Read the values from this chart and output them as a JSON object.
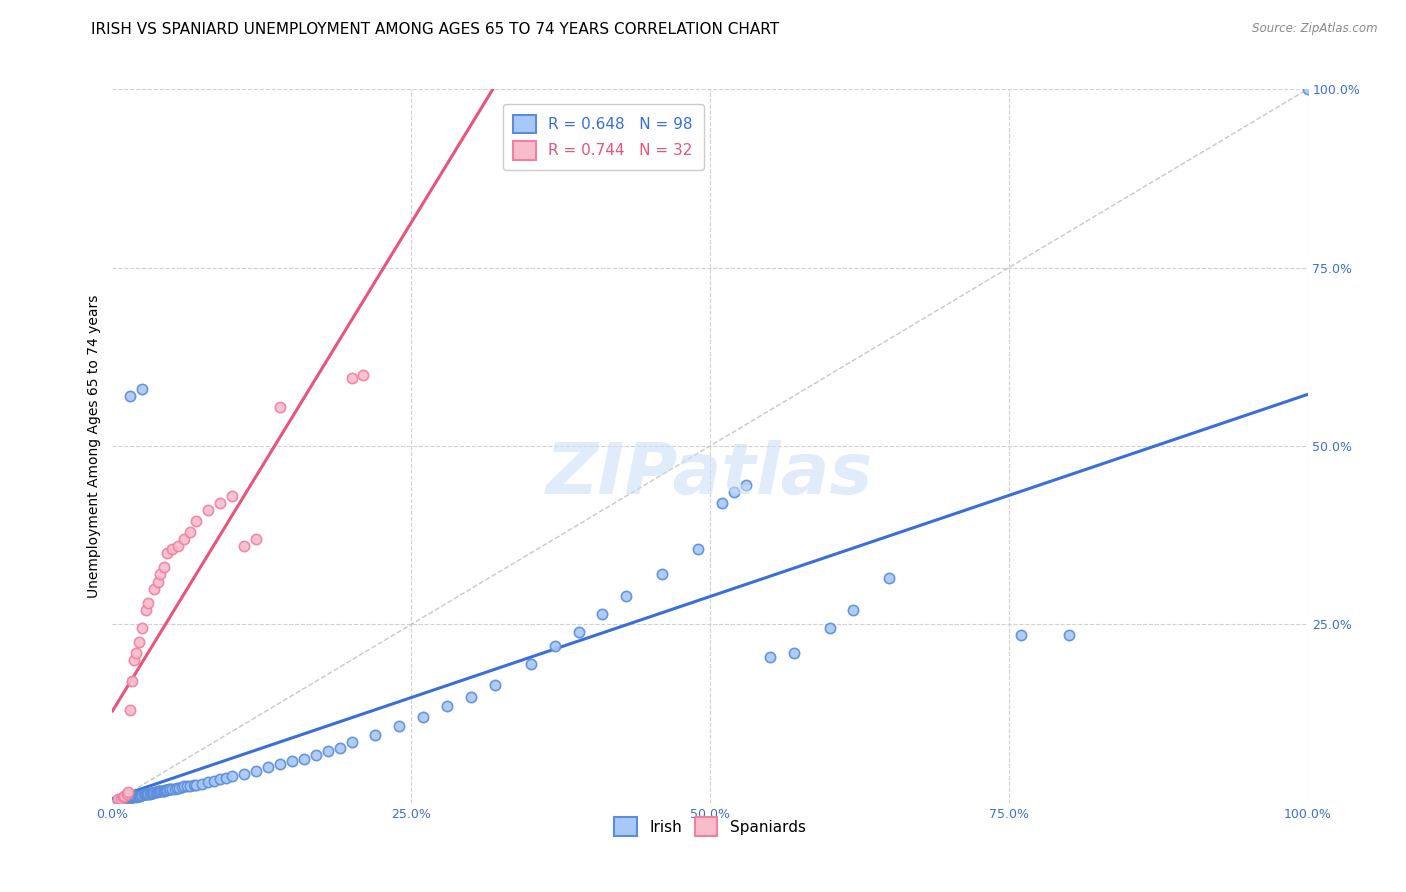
{
  "title": "IRISH VS SPANIARD UNEMPLOYMENT AMONG AGES 65 TO 74 YEARS CORRELATION CHART",
  "source": "Source: ZipAtlas.com",
  "ylabel": "Unemployment Among Ages 65 to 74 years",
  "xlim": [
    0.0,
    1.0
  ],
  "ylim": [
    0.0,
    1.0
  ],
  "xtick_labels": [
    "0.0%",
    "25.0%",
    "50.0%",
    "75.0%",
    "100.0%"
  ],
  "xtick_vals": [
    0.0,
    0.25,
    0.5,
    0.75,
    1.0
  ],
  "ytick_labels_right": [
    "100.0%",
    "75.0%",
    "50.0%",
    "25.0%"
  ],
  "ytick_vals_right": [
    1.0,
    0.75,
    0.5,
    0.25
  ],
  "irish_color": "#a8c8fa",
  "irish_edge_color": "#5b8dd9",
  "spaniard_color": "#f9bccb",
  "spaniard_edge_color": "#f080a0",
  "irish_line_color": "#3a6fd8",
  "spaniard_line_color": "#e8547a",
  "diagonal_color": "#c8c8c8",
  "irish_R": 0.648,
  "irish_N": 98,
  "spaniard_R": 0.744,
  "spaniard_N": 32,
  "legend_irish_label": "R = 0.648   N = 98",
  "legend_spaniard_label": "R = 0.744   N = 32",
  "watermark": "ZIPatlas",
  "background_color": "#ffffff",
  "title_fontsize": 11,
  "axis_label_fontsize": 10,
  "tick_fontsize": 9,
  "marker_size": 55,
  "marker_linewidth": 1.2,
  "irish_x": [
    0.005,
    0.007,
    0.008,
    0.009,
    0.01,
    0.01,
    0.011,
    0.012,
    0.013,
    0.014,
    0.015,
    0.015,
    0.016,
    0.017,
    0.018,
    0.019,
    0.02,
    0.02,
    0.021,
    0.022,
    0.023,
    0.024,
    0.025,
    0.026,
    0.027,
    0.028,
    0.029,
    0.03,
    0.031,
    0.032,
    0.033,
    0.034,
    0.035,
    0.036,
    0.037,
    0.038,
    0.039,
    0.04,
    0.041,
    0.042,
    0.043,
    0.044,
    0.045,
    0.046,
    0.047,
    0.048,
    0.05,
    0.052,
    0.054,
    0.056,
    0.058,
    0.06,
    0.062,
    0.065,
    0.068,
    0.07,
    0.075,
    0.08,
    0.085,
    0.09,
    0.095,
    0.1,
    0.11,
    0.12,
    0.13,
    0.14,
    0.15,
    0.16,
    0.17,
    0.18,
    0.19,
    0.2,
    0.22,
    0.24,
    0.26,
    0.28,
    0.3,
    0.32,
    0.35,
    0.37,
    0.39,
    0.41,
    0.43,
    0.46,
    0.49,
    0.51,
    0.52,
    0.53,
    0.55,
    0.57,
    0.6,
    0.62,
    0.65,
    0.76,
    0.8,
    1.0,
    0.015,
    0.025
  ],
  "irish_y": [
    0.004,
    0.005,
    0.005,
    0.006,
    0.006,
    0.007,
    0.006,
    0.007,
    0.007,
    0.008,
    0.007,
    0.008,
    0.008,
    0.008,
    0.009,
    0.009,
    0.008,
    0.01,
    0.01,
    0.01,
    0.01,
    0.011,
    0.011,
    0.012,
    0.012,
    0.012,
    0.013,
    0.013,
    0.013,
    0.014,
    0.014,
    0.014,
    0.015,
    0.015,
    0.015,
    0.016,
    0.016,
    0.016,
    0.017,
    0.017,
    0.017,
    0.018,
    0.018,
    0.018,
    0.019,
    0.019,
    0.02,
    0.02,
    0.021,
    0.021,
    0.022,
    0.023,
    0.023,
    0.024,
    0.025,
    0.025,
    0.027,
    0.029,
    0.031,
    0.033,
    0.035,
    0.037,
    0.041,
    0.045,
    0.05,
    0.054,
    0.058,
    0.062,
    0.067,
    0.072,
    0.077,
    0.085,
    0.095,
    0.108,
    0.12,
    0.135,
    0.148,
    0.165,
    0.195,
    0.22,
    0.24,
    0.265,
    0.29,
    0.32,
    0.355,
    0.42,
    0.435,
    0.445,
    0.205,
    0.21,
    0.245,
    0.27,
    0.315,
    0.235,
    0.235,
    1.0,
    0.57,
    0.58
  ],
  "spaniard_x": [
    0.005,
    0.007,
    0.009,
    0.01,
    0.012,
    0.013,
    0.015,
    0.016,
    0.018,
    0.02,
    0.022,
    0.025,
    0.028,
    0.03,
    0.035,
    0.038,
    0.04,
    0.043,
    0.046,
    0.05,
    0.055,
    0.06,
    0.065,
    0.07,
    0.08,
    0.09,
    0.1,
    0.11,
    0.12,
    0.14,
    0.2,
    0.21
  ],
  "spaniard_y": [
    0.005,
    0.006,
    0.008,
    0.01,
    0.013,
    0.015,
    0.13,
    0.17,
    0.2,
    0.21,
    0.225,
    0.245,
    0.27,
    0.28,
    0.3,
    0.31,
    0.32,
    0.33,
    0.35,
    0.355,
    0.36,
    0.37,
    0.38,
    0.395,
    0.41,
    0.42,
    0.43,
    0.36,
    0.37,
    0.555,
    0.595,
    0.6
  ]
}
